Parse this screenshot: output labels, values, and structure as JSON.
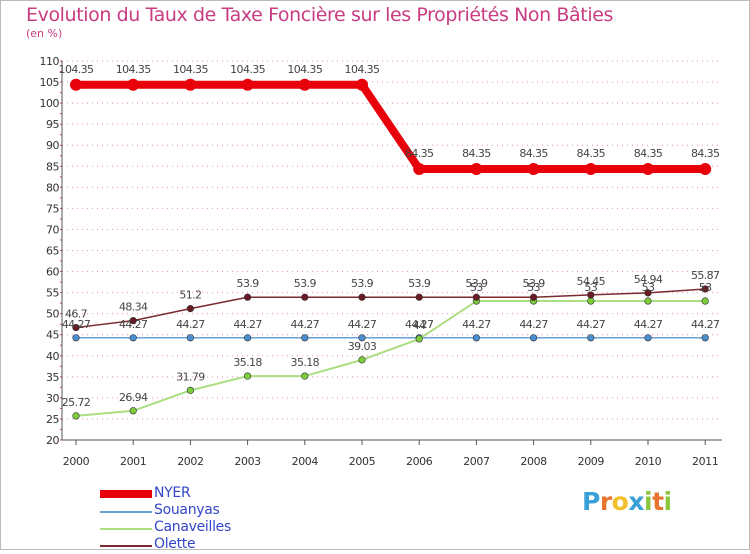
{
  "title": "Evolution du Taux de Taxe Foncière sur les Propriétés Non Bâties",
  "subtitle": "(en %)",
  "logo": {
    "text": "Proxiti",
    "letters": [
      "P",
      "r",
      "o",
      "x",
      "i",
      "t",
      "i"
    ],
    "colors": [
      "#3aa0d8",
      "#e8742e",
      "#f2c02a",
      "#3aa0d8",
      "#8cc63f",
      "#e8742e",
      "#8cc63f"
    ]
  },
  "colors": {
    "title": "#c83c82",
    "legend_text": "#3346c8",
    "axis": "#555555",
    "grid_dash": "#d04070",
    "frame": "#bbbbbb"
  },
  "chart_data": {
    "type": "line",
    "title": "Evolution du Taux de Taxe Foncière sur les Propriétés Non Bâties",
    "ylabel": "(en %)",
    "xlabel": "",
    "x": [
      "2000",
      "2001",
      "2002",
      "2003",
      "2004",
      "2005",
      "2006",
      "2007",
      "2008",
      "2009",
      "2010",
      "2011"
    ],
    "ylim": [
      20,
      110
    ],
    "yticks": [
      20,
      25,
      30,
      35,
      40,
      45,
      50,
      55,
      60,
      65,
      70,
      75,
      80,
      85,
      90,
      95,
      100,
      105,
      110
    ],
    "legend_position": "bottom-left",
    "series": [
      {
        "name": "NYER",
        "color": "#e8000a",
        "width": 8,
        "marker": false,
        "values": [
          104.35,
          104.35,
          104.35,
          104.35,
          104.35,
          104.35,
          84.35,
          84.35,
          84.35,
          84.35,
          84.35,
          84.35
        ],
        "labels": [
          "104.35",
          "104.35",
          "104.35",
          "104.35",
          "104.35",
          "104.35",
          "84.35",
          "84.35",
          "84.35",
          "84.35",
          "84.35",
          "84.35"
        ]
      },
      {
        "name": "Souanyas",
        "color": "#6aa0d4",
        "width": 1.5,
        "marker": true,
        "marker_color": "#4a8ed0",
        "values": [
          44.27,
          44.27,
          44.27,
          44.27,
          44.27,
          44.27,
          44.27,
          44.27,
          44.27,
          44.27,
          44.27,
          44.27
        ],
        "labels": [
          "44.27",
          "44.27",
          "44.27",
          "44.27",
          "44.27",
          "44.27",
          "44.27",
          "44.27",
          "44.27",
          "44.27",
          "44.27",
          "44.27"
        ]
      },
      {
        "name": "Canaveilles",
        "color": "#aade80",
        "width": 2,
        "marker": true,
        "marker_color": "#7ccc3c",
        "values": [
          25.72,
          26.94,
          31.79,
          35.18,
          35.18,
          39.03,
          44.0,
          53.0,
          53.0,
          53.0,
          53.0,
          53.0
        ],
        "labels": [
          "25.72",
          "26.94",
          "31.79",
          "35.18",
          "35.18",
          "39.03",
          "44",
          "53",
          "53",
          "53",
          "53",
          "53"
        ]
      },
      {
        "name": "Olette",
        "color": "#7a2a30",
        "width": 1.5,
        "marker": true,
        "marker_color": "#6a1a22",
        "values": [
          46.7,
          48.34,
          51.2,
          53.9,
          53.9,
          53.9,
          53.9,
          53.9,
          53.9,
          54.45,
          54.94,
          55.87
        ],
        "labels": [
          "46.7",
          "48.34",
          "51.2",
          "53.9",
          "53.9",
          "53.9",
          "53.9",
          "53.9",
          "53.9",
          "54.45",
          "54.94",
          "55.87"
        ]
      }
    ]
  }
}
